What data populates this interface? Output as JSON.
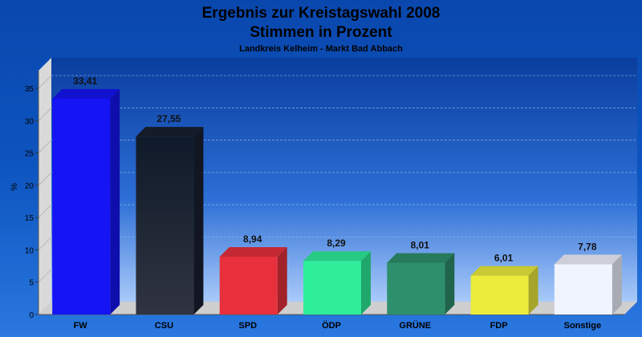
{
  "chart_data": {
    "type": "bar",
    "title": "Ergebnis zur Kreistagswahl 2008",
    "title_line2": "Stimmen in Prozent",
    "subtitle": "Landkreis Kelheim - Markt Bad Abbach",
    "ylabel": "%",
    "ylim": [
      0,
      38
    ],
    "yticks": [
      0,
      5,
      10,
      15,
      20,
      25,
      30,
      35
    ],
    "grid": true,
    "categories": [
      "FW",
      "CSU",
      "SPD",
      "ÖDP",
      "GRÜNE",
      "FDP",
      "Sonstige"
    ],
    "values": [
      33.41,
      27.55,
      8.94,
      8.29,
      8.01,
      6.01,
      7.78
    ],
    "value_labels": [
      "33,41",
      "27,55",
      "8,94",
      "8,29",
      "8,01",
      "6,01",
      "7,78"
    ],
    "colors": [
      "#1414f5",
      "#182030",
      "#e8303c",
      "#2eee9a",
      "#2e8f6c",
      "#ecec3c",
      "#f0f4ff"
    ]
  }
}
